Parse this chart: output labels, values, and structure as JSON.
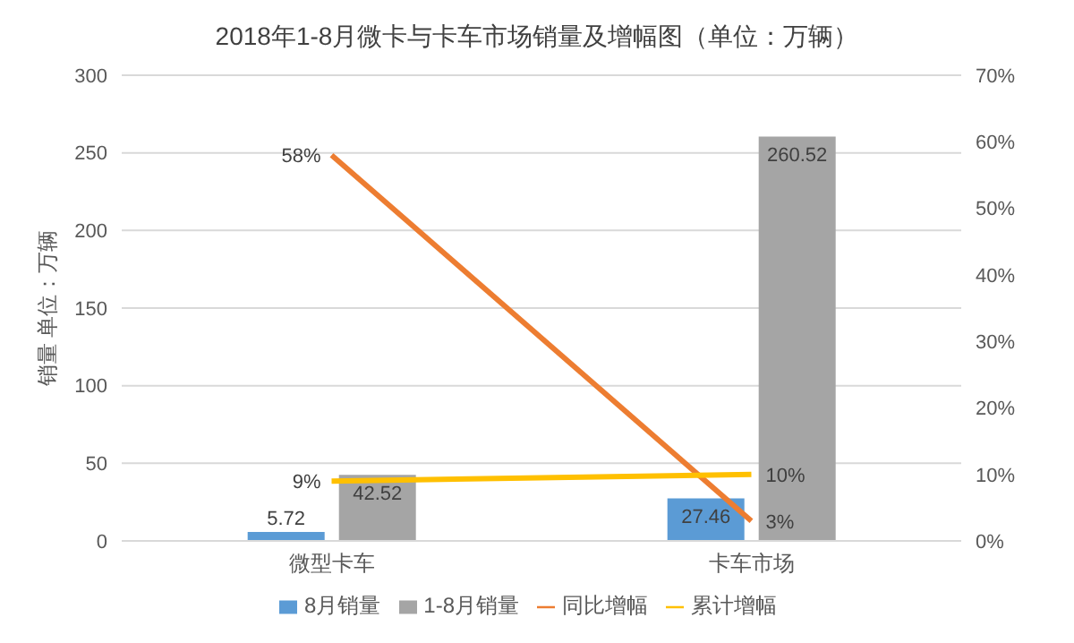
{
  "chart_data": {
    "type": "bar",
    "title": "2018年1-8月微卡与卡车市场销量及增幅图（单位：万辆）",
    "ylabel": "销量 单位：万辆",
    "categories": [
      "微型卡车",
      "卡车市场"
    ],
    "series": [
      {
        "name": "8月销量",
        "color": "#5b9bd5",
        "values": [
          5.72,
          27.46
        ],
        "value_labels": [
          "5.72",
          "27.46"
        ]
      },
      {
        "name": "1-8月销量",
        "color": "#a5a5a5",
        "values": [
          42.52,
          260.52
        ],
        "value_labels": [
          "42.52",
          "260.52"
        ]
      },
      {
        "name": "同比增幅",
        "type": "line",
        "axis": "y2",
        "color": "#ed7d31",
        "values": [
          58,
          3
        ],
        "value_labels": [
          "58%",
          "3%"
        ]
      },
      {
        "name": "累计增幅",
        "type": "line",
        "axis": "y2",
        "color": "#ffc000",
        "values": [
          9,
          10
        ],
        "value_labels": [
          "9%",
          "10%"
        ]
      }
    ],
    "ylim": [
      0,
      300
    ],
    "yticks": [
      0,
      50,
      100,
      150,
      200,
      250,
      300
    ],
    "y2lim": [
      0,
      70
    ],
    "y2ticks": [
      {
        "value": 0,
        "label": "0%"
      },
      {
        "value": 10,
        "label": "10%"
      },
      {
        "value": 20,
        "label": "20%"
      },
      {
        "value": 30,
        "label": "30%"
      },
      {
        "value": 40,
        "label": "40%"
      },
      {
        "value": 50,
        "label": "50%"
      },
      {
        "value": 60,
        "label": "60%"
      },
      {
        "value": 70,
        "label": "70%"
      }
    ],
    "grid": "y",
    "legend": "bottom",
    "marker": "none",
    "line_style": "solid"
  }
}
